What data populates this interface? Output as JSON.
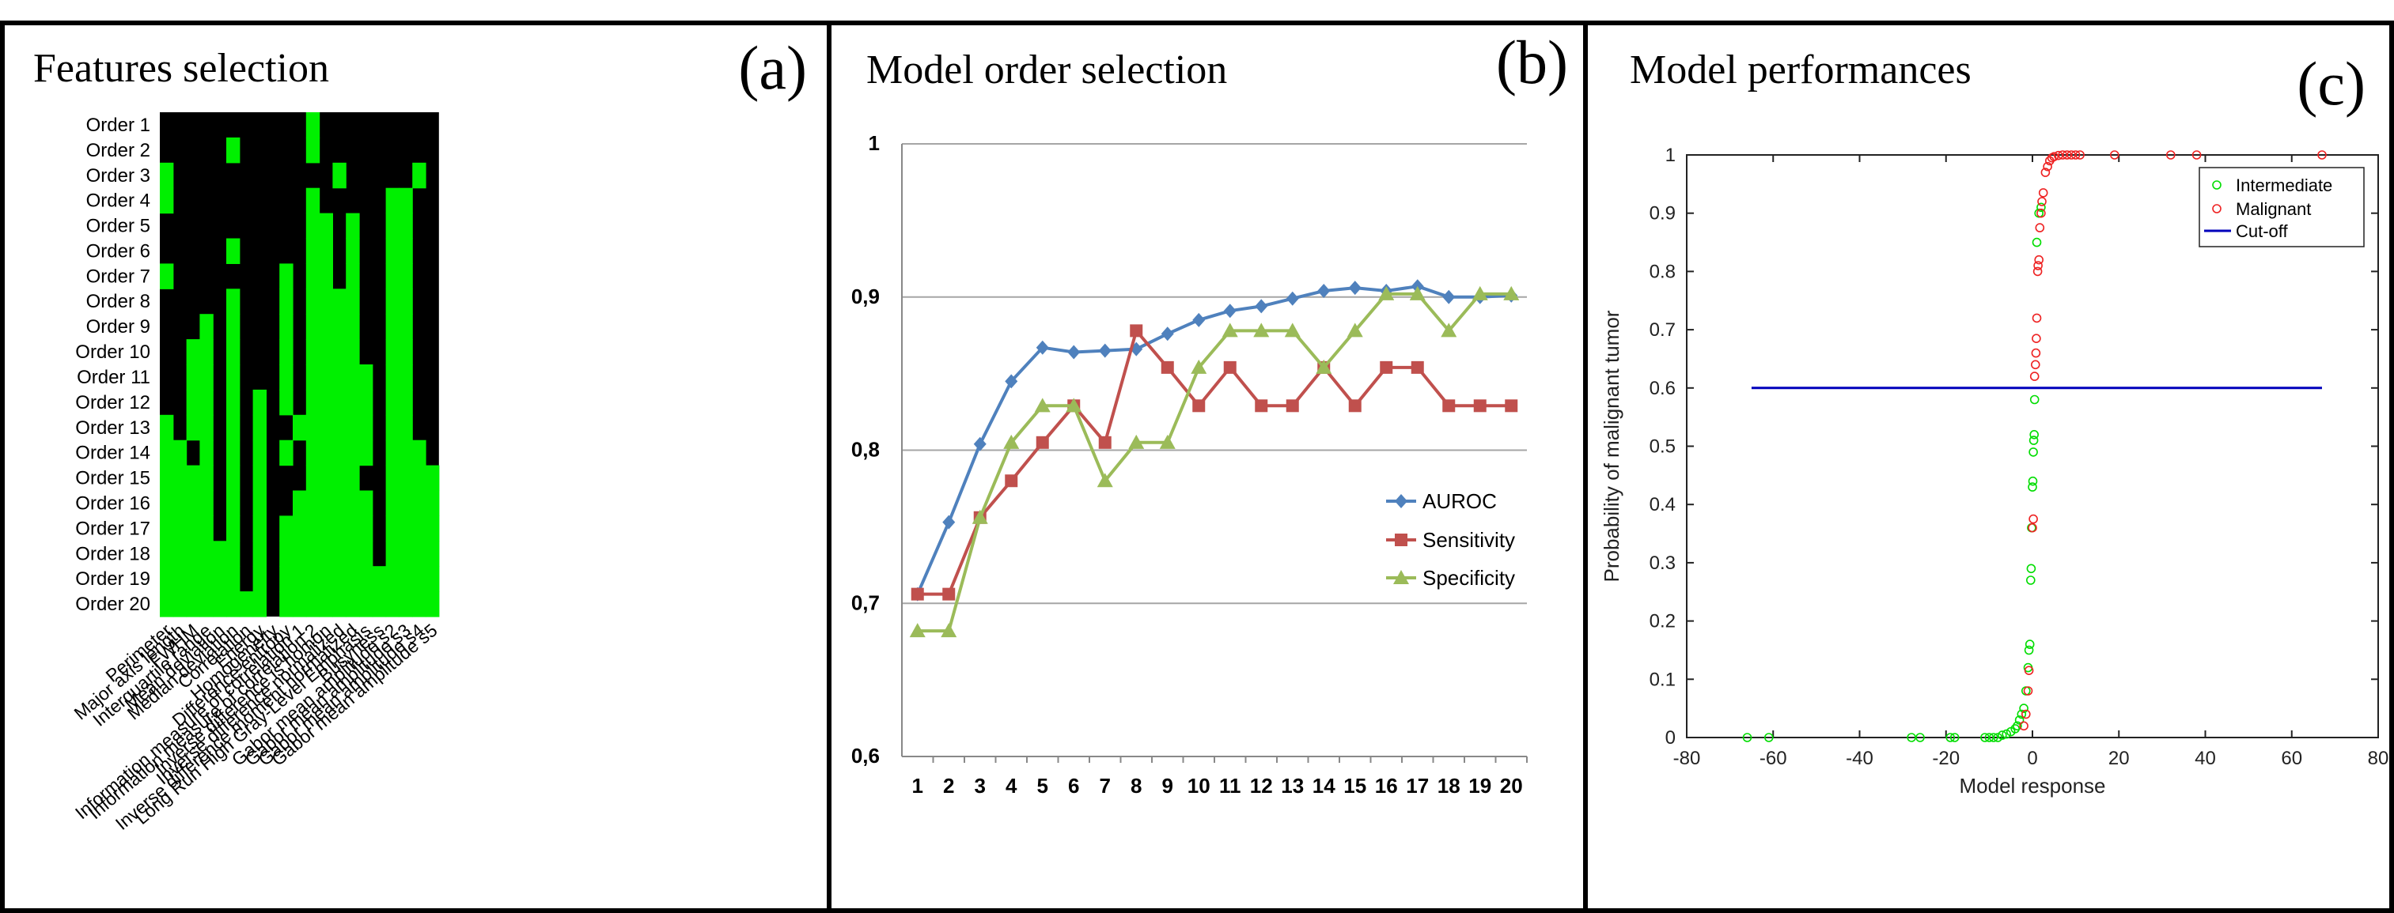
{
  "panels": {
    "a": {
      "title": "Features selection",
      "letter": "(a)"
    },
    "b": {
      "title": "Model order selection",
      "letter": "(b)"
    },
    "c": {
      "title": "Model performances",
      "letter": "(c)"
    }
  },
  "colors": {
    "on": "#00f000",
    "off": "#000000",
    "auroc": "#4f81bd",
    "sensitivity": "#c0504d",
    "specificity": "#9bbb59",
    "intermediate": "#00dd00",
    "malignant": "#ee2222",
    "cutoff": "#0000bb"
  },
  "chart_data": [
    {
      "type": "heatmap",
      "rows": [
        "Order 1",
        "Order 2",
        "Order 3",
        "Order 4",
        "Order 5",
        "Order 6",
        "Order 7",
        "Order 8",
        "Order 9",
        "Order 10",
        "Order 11",
        "Order 12",
        "Order 13",
        "Order 14",
        "Order 15",
        "Order 16",
        "Order 17",
        "Order 18",
        "Order 19",
        "Order 20"
      ],
      "columns": [
        "Perimeter",
        "Major axis length",
        "FWHM",
        "Interquartile range",
        "Mean deviation",
        "Median deviation",
        "Correlation",
        "Energy",
        "Homogeneity",
        "Difference entropy",
        "Information measure of correlation 1",
        "Information measure of correlation 2",
        "Inverse difference is homon",
        "Inverse difference normalized",
        "Inverse difference moment normalized",
        "Long Run High Gray-Level Emphasis",
        "Busyness",
        "Gabor mean amplitude s2",
        "Gabor mean amplitude s3",
        "Gabor mean amplitude s4",
        "Gabor mean amplitude s5"
      ],
      "matrix": [
        [
          0,
          0,
          0,
          0,
          0,
          0,
          0,
          0,
          0,
          0,
          0,
          1,
          0,
          0,
          0,
          0,
          0,
          0,
          0,
          0,
          0
        ],
        [
          0,
          0,
          0,
          0,
          0,
          1,
          0,
          0,
          0,
          0,
          0,
          1,
          0,
          0,
          0,
          0,
          0,
          0,
          0,
          0,
          0
        ],
        [
          1,
          0,
          0,
          0,
          0,
          0,
          0,
          0,
          0,
          0,
          0,
          0,
          0,
          1,
          0,
          0,
          0,
          0,
          0,
          1,
          0
        ],
        [
          1,
          0,
          0,
          0,
          0,
          0,
          0,
          0,
          0,
          0,
          0,
          1,
          0,
          0,
          0,
          0,
          0,
          1,
          1,
          0,
          0
        ],
        [
          0,
          0,
          0,
          0,
          0,
          0,
          0,
          0,
          0,
          0,
          0,
          1,
          1,
          0,
          1,
          0,
          0,
          1,
          1,
          0,
          0
        ],
        [
          0,
          0,
          0,
          0,
          0,
          1,
          0,
          0,
          0,
          0,
          0,
          1,
          1,
          0,
          1,
          0,
          0,
          1,
          1,
          0,
          0
        ],
        [
          1,
          0,
          0,
          0,
          0,
          0,
          0,
          0,
          0,
          1,
          0,
          1,
          1,
          0,
          1,
          0,
          0,
          1,
          1,
          0,
          0
        ],
        [
          0,
          0,
          0,
          0,
          0,
          1,
          0,
          0,
          0,
          1,
          0,
          1,
          1,
          1,
          1,
          0,
          0,
          1,
          1,
          0,
          0
        ],
        [
          0,
          0,
          0,
          1,
          0,
          1,
          0,
          0,
          0,
          1,
          0,
          1,
          1,
          1,
          1,
          0,
          0,
          1,
          1,
          0,
          0
        ],
        [
          0,
          0,
          1,
          1,
          0,
          1,
          0,
          0,
          0,
          1,
          0,
          1,
          1,
          1,
          1,
          0,
          0,
          1,
          1,
          0,
          0
        ],
        [
          0,
          0,
          1,
          1,
          0,
          1,
          0,
          0,
          0,
          1,
          0,
          1,
          1,
          1,
          1,
          1,
          0,
          1,
          1,
          0,
          0
        ],
        [
          0,
          0,
          1,
          1,
          0,
          1,
          0,
          1,
          0,
          1,
          0,
          1,
          1,
          1,
          1,
          1,
          0,
          1,
          1,
          0,
          0
        ],
        [
          1,
          0,
          1,
          1,
          0,
          1,
          0,
          1,
          0,
          0,
          1,
          1,
          1,
          1,
          1,
          1,
          0,
          1,
          1,
          0,
          0
        ],
        [
          1,
          1,
          0,
          1,
          0,
          1,
          0,
          1,
          0,
          1,
          0,
          1,
          1,
          1,
          1,
          1,
          0,
          1,
          1,
          1,
          0
        ],
        [
          1,
          1,
          1,
          1,
          0,
          1,
          0,
          1,
          0,
          0,
          0,
          1,
          1,
          1,
          1,
          0,
          0,
          1,
          1,
          1,
          1
        ],
        [
          1,
          1,
          1,
          1,
          0,
          1,
          0,
          1,
          0,
          0,
          1,
          1,
          1,
          1,
          1,
          1,
          0,
          1,
          1,
          1,
          1
        ],
        [
          1,
          1,
          1,
          1,
          0,
          1,
          0,
          1,
          0,
          1,
          1,
          1,
          1,
          1,
          1,
          1,
          0,
          1,
          1,
          1,
          1
        ],
        [
          1,
          1,
          1,
          1,
          1,
          1,
          0,
          1,
          0,
          1,
          1,
          1,
          1,
          1,
          1,
          1,
          0,
          1,
          1,
          1,
          1
        ],
        [
          1,
          1,
          1,
          1,
          1,
          1,
          0,
          1,
          0,
          1,
          1,
          1,
          1,
          1,
          1,
          1,
          1,
          1,
          1,
          1,
          1
        ],
        [
          1,
          1,
          1,
          1,
          1,
          1,
          1,
          1,
          0,
          1,
          1,
          1,
          1,
          1,
          1,
          1,
          1,
          1,
          1,
          1,
          1
        ]
      ]
    },
    {
      "type": "line",
      "x": [
        1,
        2,
        3,
        4,
        5,
        6,
        7,
        8,
        9,
        10,
        11,
        12,
        13,
        14,
        15,
        16,
        17,
        18,
        19,
        20
      ],
      "ylim": [
        0.6,
        1.0
      ],
      "yticks": [
        "0,6",
        "0,7",
        "0,8",
        "0,9",
        "1"
      ],
      "grid": true,
      "legend_position": "right",
      "series": [
        {
          "name": "AUROC",
          "marker": "diamond",
          "values": [
            0.706,
            0.753,
            0.804,
            0.845,
            0.867,
            0.864,
            0.865,
            0.866,
            0.876,
            0.885,
            0.891,
            0.894,
            0.899,
            0.904,
            0.906,
            0.904,
            0.907,
            0.9,
            0.9,
            0.901
          ]
        },
        {
          "name": "Sensitivity",
          "marker": "square",
          "values": [
            0.706,
            0.706,
            0.756,
            0.78,
            0.805,
            0.829,
            0.805,
            0.878,
            0.854,
            0.829,
            0.854,
            0.829,
            0.829,
            0.854,
            0.829,
            0.854,
            0.854,
            0.829,
            0.829,
            0.829
          ]
        },
        {
          "name": "Specificity",
          "marker": "triangle",
          "values": [
            0.682,
            0.682,
            0.756,
            0.805,
            0.829,
            0.829,
            0.78,
            0.805,
            0.805,
            0.854,
            0.878,
            0.878,
            0.878,
            0.854,
            0.878,
            0.902,
            0.902,
            0.878,
            0.902,
            0.902
          ]
        }
      ]
    },
    {
      "type": "scatter",
      "xlabel": "Model response",
      "ylabel": "Probability of malignant tumor",
      "xlim": [
        -80,
        80
      ],
      "ylim": [
        0,
        1
      ],
      "xticks": [
        "-80",
        "-60",
        "-40",
        "-20",
        "0",
        "20",
        "40",
        "60",
        "80"
      ],
      "yticks": [
        "0",
        "0.1",
        "0.2",
        "0.3",
        "0.4",
        "0.5",
        "0.6",
        "0.7",
        "0.8",
        "0.9",
        "1"
      ],
      "legend_position": "top-right",
      "series": [
        {
          "name": "Intermediate",
          "marker": "circle",
          "points": [
            [
              -66,
              0
            ],
            [
              -61,
              0
            ],
            [
              -28,
              0
            ],
            [
              -26,
              0
            ],
            [
              -19,
              0
            ],
            [
              -18,
              0
            ],
            [
              -11,
              0
            ],
            [
              -10,
              0
            ],
            [
              -9,
              0
            ],
            [
              -8,
              0
            ],
            [
              -7,
              0.004
            ],
            [
              -6,
              0.006
            ],
            [
              -5,
              0.01
            ],
            [
              -4,
              0.015
            ],
            [
              -3.5,
              0.02
            ],
            [
              -3,
              0.03
            ],
            [
              -2.5,
              0.04
            ],
            [
              -2,
              0.05
            ],
            [
              -1.5,
              0.08
            ],
            [
              -1,
              0.12
            ],
            [
              -0.8,
              0.15
            ],
            [
              -0.6,
              0.16
            ],
            [
              -0.4,
              0.27
            ],
            [
              -0.3,
              0.29
            ],
            [
              -0.2,
              0.36
            ],
            [
              0,
              0.43
            ],
            [
              0.1,
              0.44
            ],
            [
              0.2,
              0.49
            ],
            [
              0.3,
              0.51
            ],
            [
              0.4,
              0.52
            ],
            [
              0.5,
              0.58
            ],
            [
              1,
              0.85
            ],
            [
              1.5,
              0.9
            ],
            [
              2,
              0.91
            ]
          ]
        },
        {
          "name": "Malignant",
          "marker": "circle",
          "points": [
            [
              -2,
              0.02
            ],
            [
              -1.5,
              0.04
            ],
            [
              -1,
              0.08
            ],
            [
              -0.8,
              0.115
            ],
            [
              0,
              0.36
            ],
            [
              0.2,
              0.375
            ],
            [
              0.5,
              0.62
            ],
            [
              0.7,
              0.64
            ],
            [
              0.8,
              0.66
            ],
            [
              0.9,
              0.685
            ],
            [
              1,
              0.72
            ],
            [
              1.2,
              0.8
            ],
            [
              1.3,
              0.81
            ],
            [
              1.5,
              0.82
            ],
            [
              1.7,
              0.875
            ],
            [
              2,
              0.9
            ],
            [
              2.2,
              0.92
            ],
            [
              2.5,
              0.935
            ],
            [
              3,
              0.97
            ],
            [
              3.5,
              0.98
            ],
            [
              4,
              0.99
            ],
            [
              4.5,
              0.995
            ],
            [
              5,
              0.997
            ],
            [
              6,
              0.999
            ],
            [
              7,
              1
            ],
            [
              8,
              1
            ],
            [
              9,
              1
            ],
            [
              10,
              1
            ],
            [
              11,
              1
            ],
            [
              19,
              1
            ],
            [
              32,
              1
            ],
            [
              38,
              1
            ],
            [
              67,
              1
            ]
          ]
        },
        {
          "name": "Cut-off",
          "type": "line",
          "points": [
            [
              -65,
              0.6
            ],
            [
              67,
              0.6
            ]
          ]
        }
      ]
    }
  ]
}
